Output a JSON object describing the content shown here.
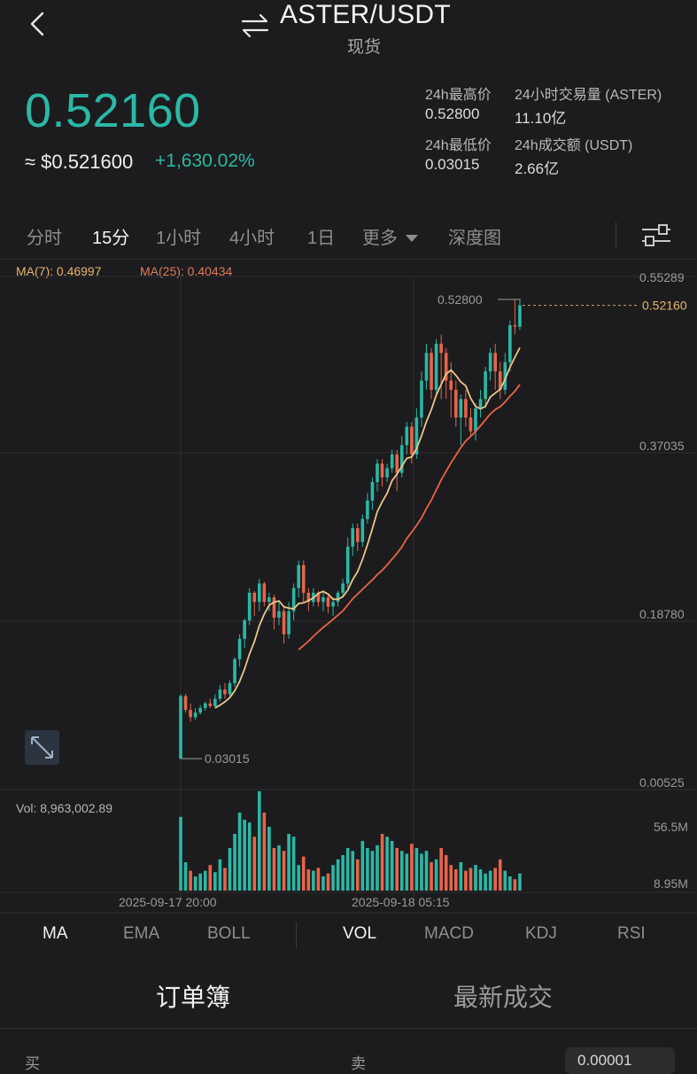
{
  "header": {
    "pair": "ASTER/USDT",
    "market_type": "现货",
    "back_icon": "chevron-left-icon",
    "swap_icon": "swap-arrows-icon"
  },
  "ticker": {
    "last_price": "0.52160",
    "usd_price": "≈ $0.521600",
    "change_pct": "+1,630.02%",
    "accent_color": "#2bb8a5"
  },
  "stats": {
    "high_label": "24h最高价",
    "high_value": "0.52800",
    "vol_base_label": "24小时交易量 (ASTER)",
    "vol_base_value": "11.10亿",
    "low_label": "24h最低价",
    "low_value": "0.03015",
    "vol_quote_label": "24h成交额 (USDT)",
    "vol_quote_value": "2.66亿"
  },
  "interval_tabs": [
    "分时",
    "15分",
    "1小时",
    "4小时",
    "1日",
    "更多",
    "深度图"
  ],
  "active_interval": "15分",
  "ma_legend": {
    "ma7": "MA(7): 0.46997",
    "ma25": "MA(25): 0.40434"
  },
  "chart_data": {
    "type": "candlestick",
    "y_axis_labels": [
      "0.55289",
      "0.37035",
      "0.18780",
      "0.00525"
    ],
    "ylim": [
      0.00525,
      0.55289
    ],
    "x_axis_labels": [
      "2025-09-17 20:00",
      "2025-09-18 05:15"
    ],
    "current_price_tag": "0.52160",
    "high_marker": "0.52800",
    "low_marker": "0.03015",
    "up_color": "#2bb8a5",
    "down_color": "#e8644a",
    "candles": [
      [
        0.03,
        0.098,
        0.03,
        0.1
      ],
      [
        0.098,
        0.083,
        0.08,
        0.1
      ],
      [
        0.083,
        0.075,
        0.07,
        0.09
      ],
      [
        0.075,
        0.08,
        0.072,
        0.085
      ],
      [
        0.08,
        0.085,
        0.078,
        0.088
      ],
      [
        0.085,
        0.09,
        0.082,
        0.092
      ],
      [
        0.09,
        0.087,
        0.085,
        0.095
      ],
      [
        0.087,
        0.095,
        0.085,
        0.1
      ],
      [
        0.095,
        0.105,
        0.092,
        0.11
      ],
      [
        0.105,
        0.1,
        0.095,
        0.112
      ],
      [
        0.1,
        0.112,
        0.098,
        0.115
      ],
      [
        0.112,
        0.138,
        0.108,
        0.14
      ],
      [
        0.138,
        0.16,
        0.13,
        0.165
      ],
      [
        0.16,
        0.18,
        0.15,
        0.182
      ],
      [
        0.18,
        0.21,
        0.175,
        0.215
      ],
      [
        0.21,
        0.2,
        0.185,
        0.212
      ],
      [
        0.2,
        0.22,
        0.19,
        0.225
      ],
      [
        0.22,
        0.2,
        0.195,
        0.222
      ],
      [
        0.2,
        0.205,
        0.19,
        0.21
      ],
      [
        0.205,
        0.183,
        0.17,
        0.208
      ],
      [
        0.183,
        0.19,
        0.175,
        0.2
      ],
      [
        0.19,
        0.165,
        0.155,
        0.195
      ],
      [
        0.165,
        0.19,
        0.16,
        0.2
      ],
      [
        0.19,
        0.215,
        0.18,
        0.22
      ],
      [
        0.215,
        0.24,
        0.205,
        0.245
      ],
      [
        0.24,
        0.21,
        0.2,
        0.245
      ],
      [
        0.21,
        0.2,
        0.19,
        0.215
      ],
      [
        0.2,
        0.21,
        0.195,
        0.215
      ],
      [
        0.21,
        0.2,
        0.195,
        0.212
      ],
      [
        0.2,
        0.205,
        0.19,
        0.21
      ],
      [
        0.205,
        0.195,
        0.188,
        0.208
      ],
      [
        0.195,
        0.2,
        0.185,
        0.205
      ],
      [
        0.2,
        0.21,
        0.195,
        0.212
      ],
      [
        0.21,
        0.22,
        0.205,
        0.225
      ],
      [
        0.22,
        0.26,
        0.215,
        0.27
      ],
      [
        0.26,
        0.28,
        0.25,
        0.285
      ],
      [
        0.28,
        0.265,
        0.255,
        0.285
      ],
      [
        0.265,
        0.29,
        0.26,
        0.295
      ],
      [
        0.29,
        0.31,
        0.285,
        0.318
      ],
      [
        0.31,
        0.33,
        0.3,
        0.335
      ],
      [
        0.33,
        0.35,
        0.32,
        0.355
      ],
      [
        0.35,
        0.335,
        0.325,
        0.355
      ],
      [
        0.335,
        0.345,
        0.33,
        0.35
      ],
      [
        0.345,
        0.36,
        0.34,
        0.365
      ],
      [
        0.36,
        0.34,
        0.32,
        0.365
      ],
      [
        0.34,
        0.37,
        0.335,
        0.38
      ],
      [
        0.37,
        0.39,
        0.36,
        0.395
      ],
      [
        0.39,
        0.36,
        0.35,
        0.395
      ],
      [
        0.36,
        0.4,
        0.355,
        0.41
      ],
      [
        0.4,
        0.44,
        0.39,
        0.45
      ],
      [
        0.44,
        0.47,
        0.43,
        0.48
      ],
      [
        0.47,
        0.43,
        0.42,
        0.475
      ],
      [
        0.43,
        0.48,
        0.425,
        0.485
      ],
      [
        0.48,
        0.47,
        0.42,
        0.49
      ],
      [
        0.47,
        0.44,
        0.42,
        0.475
      ],
      [
        0.44,
        0.43,
        0.4,
        0.46
      ],
      [
        0.43,
        0.4,
        0.39,
        0.44
      ],
      [
        0.4,
        0.42,
        0.37,
        0.425
      ],
      [
        0.42,
        0.4,
        0.39,
        0.43
      ],
      [
        0.4,
        0.385,
        0.38,
        0.41
      ],
      [
        0.385,
        0.41,
        0.375,
        0.415
      ],
      [
        0.41,
        0.42,
        0.4,
        0.43
      ],
      [
        0.42,
        0.45,
        0.41,
        0.455
      ],
      [
        0.45,
        0.47,
        0.44,
        0.475
      ],
      [
        0.47,
        0.45,
        0.43,
        0.48
      ],
      [
        0.45,
        0.43,
        0.42,
        0.46
      ],
      [
        0.43,
        0.46,
        0.425,
        0.47
      ],
      [
        0.46,
        0.5,
        0.45,
        0.505
      ],
      [
        0.5,
        0.4985,
        0.49,
        0.528
      ],
      [
        0.4985,
        0.5216,
        0.495,
        0.528
      ]
    ],
    "ma7_start": 7,
    "ma25_start": 24
  },
  "volume": {
    "label": "Vol: 8,963,002.89",
    "axis_labels": [
      "56.5M",
      "8.95M"
    ],
    "bars": [
      52,
      20,
      14,
      10,
      12,
      14,
      18,
      13,
      22,
      16,
      30,
      40,
      55,
      50,
      48,
      38,
      70,
      55,
      45,
      30,
      32,
      28,
      40,
      38,
      18,
      24,
      15,
      14,
      16,
      10,
      12,
      18,
      22,
      25,
      30,
      28,
      22,
      35,
      30,
      28,
      32,
      40,
      38,
      35,
      30,
      28,
      26,
      33,
      30,
      26,
      28,
      20,
      22,
      30,
      25,
      18,
      15,
      20,
      14,
      16,
      18,
      15,
      12,
      14,
      16,
      22,
      14,
      10,
      8,
      12
    ],
    "bar_up": [
      1,
      1,
      0,
      1,
      1,
      1,
      0,
      1,
      1,
      0,
      1,
      1,
      1,
      1,
      1,
      0,
      1,
      0,
      1,
      0,
      1,
      0,
      1,
      1,
      1,
      0,
      0,
      1,
      0,
      1,
      0,
      1,
      1,
      1,
      1,
      1,
      0,
      1,
      1,
      1,
      1,
      0,
      1,
      1,
      0,
      1,
      1,
      0,
      1,
      1,
      1,
      0,
      1,
      0,
      0,
      0,
      0,
      1,
      0,
      0,
      1,
      1,
      1,
      1,
      0,
      0,
      1,
      1,
      0,
      1
    ]
  },
  "indicator_tabs": [
    "MA",
    "EMA",
    "BOLL",
    "VOL",
    "MACD",
    "KDJ",
    "RSI"
  ],
  "active_indicators": [
    "MA",
    "VOL"
  ],
  "book_tabs": {
    "orderbook": "订单簿",
    "trades": "最新成交"
  },
  "book_columns": {
    "bid": "买",
    "ask": "卖"
  },
  "precision": "0.00001"
}
